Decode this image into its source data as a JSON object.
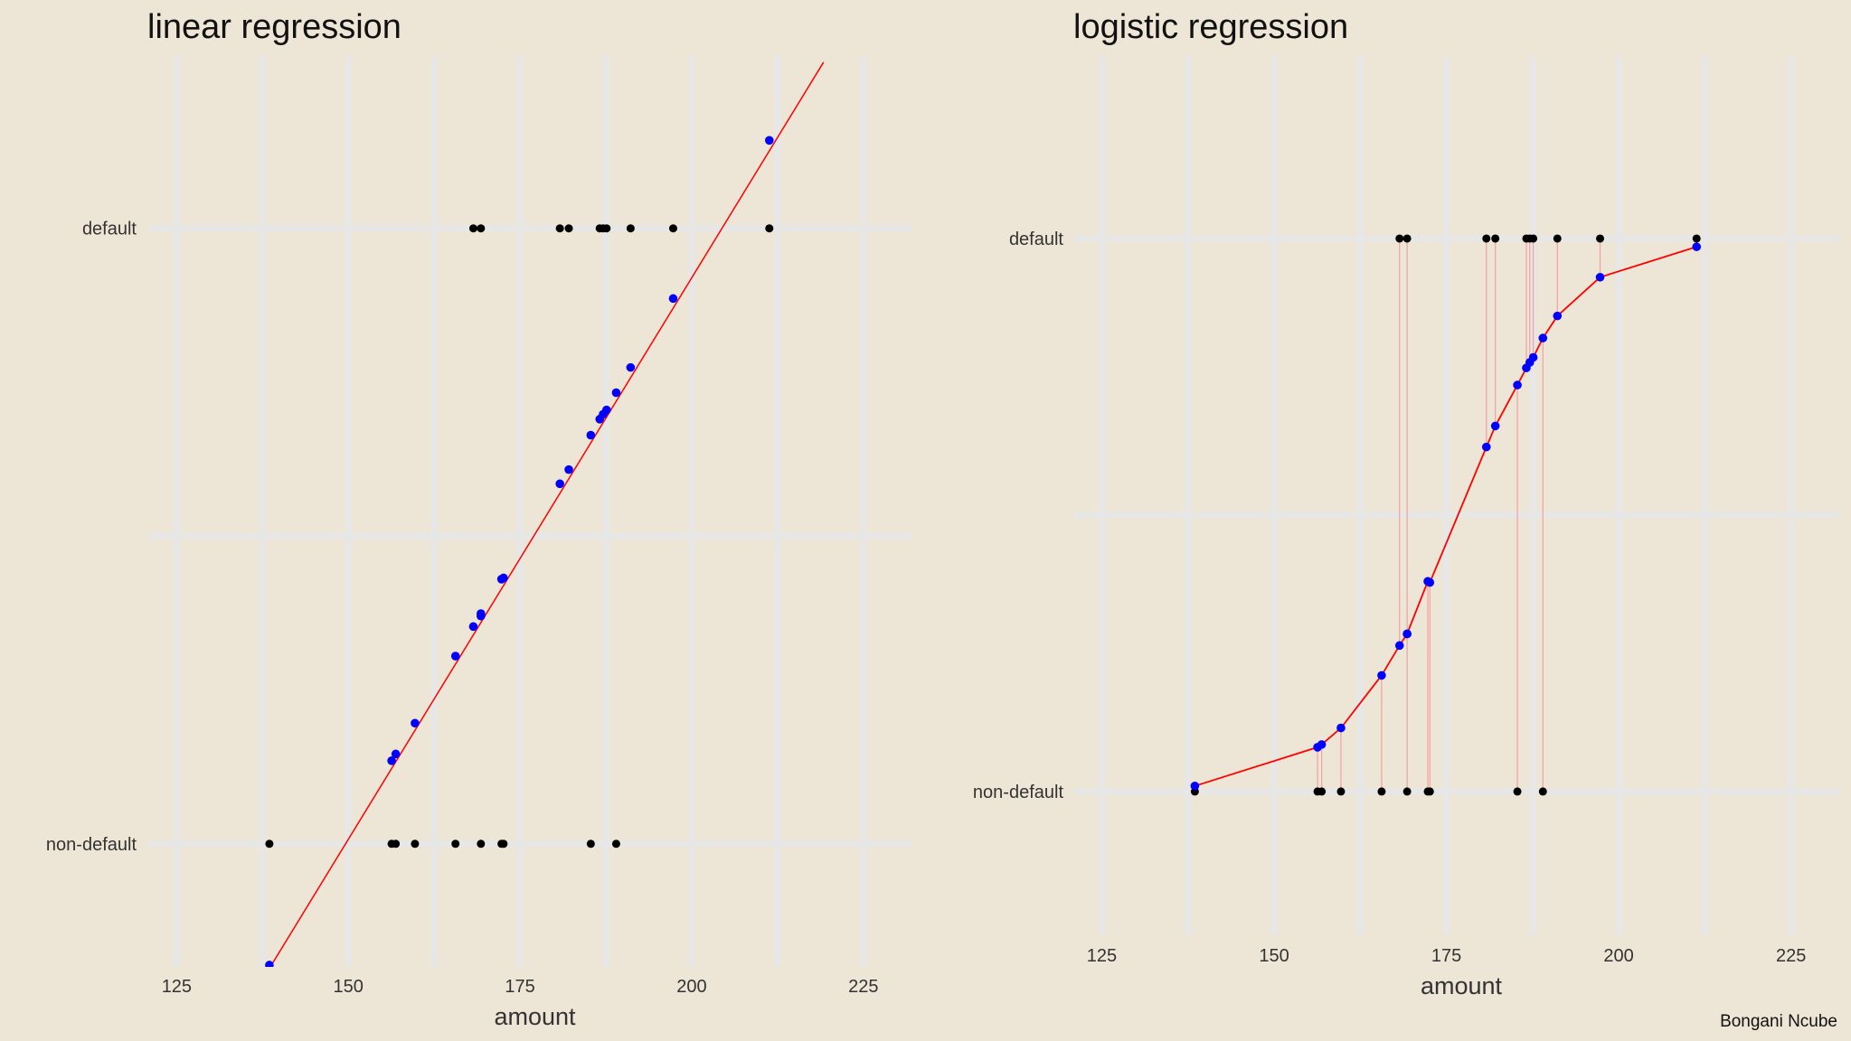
{
  "caption": "Bongani Ncube",
  "chart_data": [
    {
      "type": "scatter",
      "title": "linear regression",
      "xlabel": "amount",
      "ylabel": "",
      "xlim": [
        121,
        232
      ],
      "ylim": [
        -0.2,
        1.28
      ],
      "x_ticks": [
        125,
        150,
        175,
        200,
        225
      ],
      "y_ticks": [
        0,
        1
      ],
      "y_tick_labels": [
        "non-default",
        "default"
      ],
      "grid": true,
      "colors": {
        "observed": "#000000",
        "fitted": "#0000ff",
        "line": "#ff0000"
      },
      "line": {
        "x": [
          134.8,
          219.2
        ],
        "y": [
          -0.27,
          1.27
        ]
      },
      "series": [
        {
          "name": "",
          "color": "#000000",
          "x": [
            138.5,
            156.3,
            156.9,
            159.7,
            165.6,
            169.3,
            172.3,
            172.6,
            185.3,
            189.0,
            168.2,
            169.3,
            180.8,
            182.1,
            186.6,
            187.1,
            187.6,
            191.1,
            197.3,
            211.3
          ],
          "y": [
            0,
            0,
            0,
            0,
            0,
            0,
            0,
            0,
            0,
            0,
            1,
            1,
            1,
            1,
            1,
            1,
            1,
            1,
            1,
            1
          ]
        },
        {
          "name": "",
          "color": "#0000ff",
          "x": [
            138.5,
            156.3,
            156.9,
            159.7,
            165.6,
            169.3,
            172.3,
            172.6,
            185.3,
            189.0,
            168.2,
            169.3,
            180.8,
            182.1,
            186.6,
            187.1,
            187.6,
            191.1,
            197.3,
            211.3
          ],
          "y": [
            -0.197,
            0.135,
            0.146,
            0.196,
            0.305,
            0.37,
            0.43,
            0.432,
            0.664,
            0.733,
            0.353,
            0.374,
            0.585,
            0.608,
            0.69,
            0.698,
            0.705,
            0.774,
            0.886,
            1.143
          ]
        }
      ]
    },
    {
      "type": "scatter",
      "title": "logistic regression",
      "xlabel": "amount",
      "ylabel": "",
      "xlim": [
        121,
        232
      ],
      "ylim": [
        -0.26,
        1.33
      ],
      "x_ticks": [
        125,
        150,
        175,
        200,
        225
      ],
      "y_ticks": [
        0,
        1
      ],
      "y_tick_labels": [
        "non-default",
        "default"
      ],
      "grid": true,
      "colors": {
        "observed": "#000000",
        "fitted": "#0000ff",
        "curve": "#ff0000",
        "residual": "#f4a0a0"
      },
      "curve": {
        "x": [
          138.5,
          145,
          150,
          155,
          160,
          165,
          168,
          172,
          176,
          180,
          184,
          188,
          192,
          197,
          202,
          206,
          211.3
        ],
        "y": [
          0.01,
          0.03,
          0.06,
          0.1,
          0.18,
          0.28,
          0.36,
          0.36,
          0.53,
          0.61,
          0.74,
          0.8,
          0.86,
          0.92,
          0.95,
          0.97,
          0.99
        ]
      },
      "series": [
        {
          "name": "",
          "color": "#000000",
          "x": [
            138.5,
            156.3,
            156.9,
            159.7,
            165.6,
            169.3,
            172.3,
            172.6,
            185.3,
            189.0,
            168.2,
            169.3,
            180.8,
            182.1,
            186.6,
            187.1,
            187.6,
            191.1,
            197.3,
            211.3
          ],
          "y": [
            0,
            0,
            0,
            0,
            0,
            0,
            0,
            0,
            0,
            0,
            1,
            1,
            1,
            1,
            1,
            1,
            1,
            1,
            1,
            1
          ]
        },
        {
          "name": "",
          "color": "#0000ff",
          "x": [
            138.5,
            156.3,
            156.9,
            159.7,
            165.6,
            169.3,
            172.3,
            172.6,
            185.3,
            189.0,
            168.2,
            169.3,
            180.8,
            182.1,
            186.6,
            187.1,
            187.6,
            191.1,
            197.3,
            211.3
          ],
          "y": [
            0.01,
            0.08,
            0.085,
            0.115,
            0.21,
            0.285,
            0.38,
            0.378,
            0.735,
            0.82,
            0.264,
            0.285,
            0.623,
            0.661,
            0.766,
            0.776,
            0.785,
            0.86,
            0.93,
            0.985
          ]
        }
      ]
    }
  ]
}
